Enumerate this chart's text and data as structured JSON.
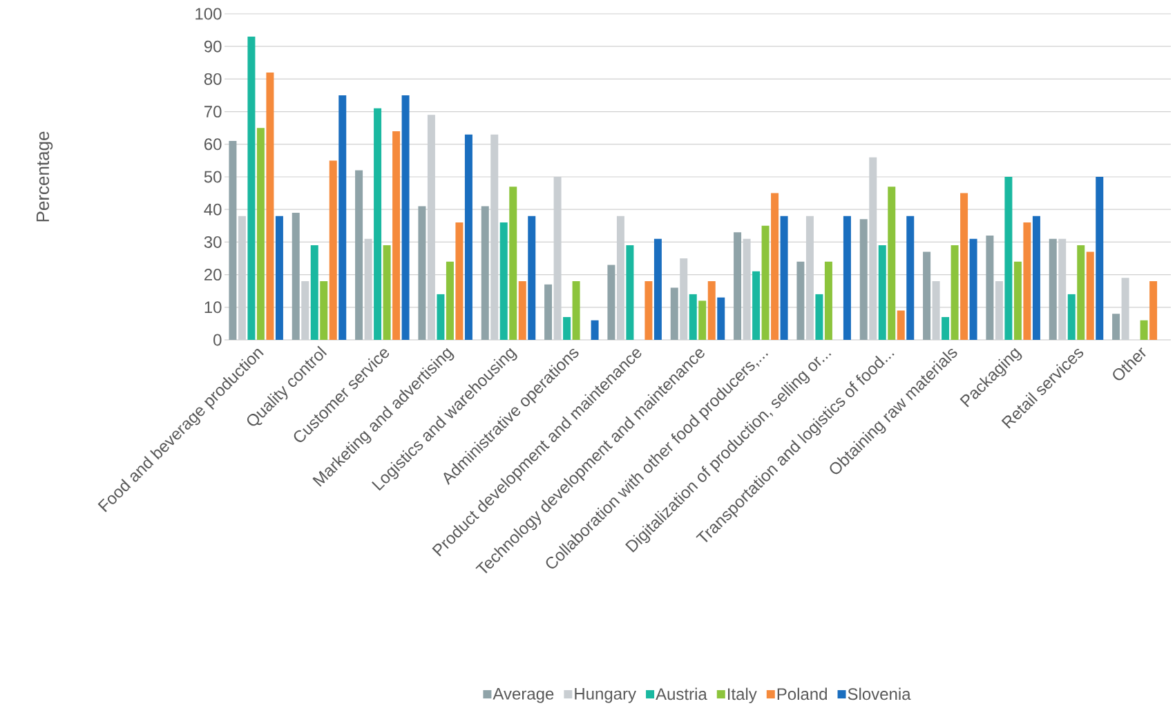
{
  "chart_data": {
    "type": "bar",
    "ylabel": "Percentage",
    "categories": [
      "Food and beverage production",
      "Quality control",
      "Customer service",
      "Marketing and advertising",
      "Logistics and warehousing",
      "Administrative operations",
      "Product development and maintenance",
      "Technology development and maintenance",
      "Collaboration with other food producers,...",
      "Digitalization of production, selling or...",
      "Transportation and logistics of food...",
      "Obtaining raw materials",
      "Packaging",
      "Retail services",
      "Other"
    ],
    "series": [
      {
        "name": "Average",
        "color": "#8fa3a8",
        "values": [
          61,
          39,
          52,
          41,
          41,
          17,
          23,
          16,
          33,
          24,
          37,
          27,
          32,
          31,
          8
        ]
      },
      {
        "name": "Hungary",
        "color": "#c9ced2",
        "values": [
          38,
          18,
          31,
          69,
          63,
          50,
          38,
          25,
          31,
          38,
          56,
          18,
          18,
          31,
          19
        ]
      },
      {
        "name": "Austria",
        "color": "#1ab8a0",
        "values": [
          93,
          29,
          71,
          14,
          36,
          7,
          29,
          14,
          21,
          14,
          29,
          7,
          50,
          14,
          0
        ]
      },
      {
        "name": "Italy",
        "color": "#8cc43c",
        "values": [
          65,
          18,
          29,
          24,
          47,
          18,
          0,
          12,
          35,
          24,
          47,
          29,
          24,
          29,
          6
        ]
      },
      {
        "name": "Poland",
        "color": "#f58a3c",
        "values": [
          82,
          55,
          64,
          36,
          18,
          0,
          18,
          18,
          45,
          0,
          9,
          45,
          36,
          27,
          18
        ]
      },
      {
        "name": "Slovenia",
        "color": "#1a6ebf",
        "values": [
          38,
          75,
          75,
          63,
          38,
          6,
          31,
          13,
          38,
          38,
          38,
          31,
          38,
          50,
          0
        ]
      }
    ],
    "ylim": [
      0,
      100
    ],
    "yticks": [
      0,
      10,
      20,
      30,
      40,
      50,
      60,
      70,
      80,
      90,
      100
    ],
    "grid": "y",
    "legend": "bottom"
  }
}
